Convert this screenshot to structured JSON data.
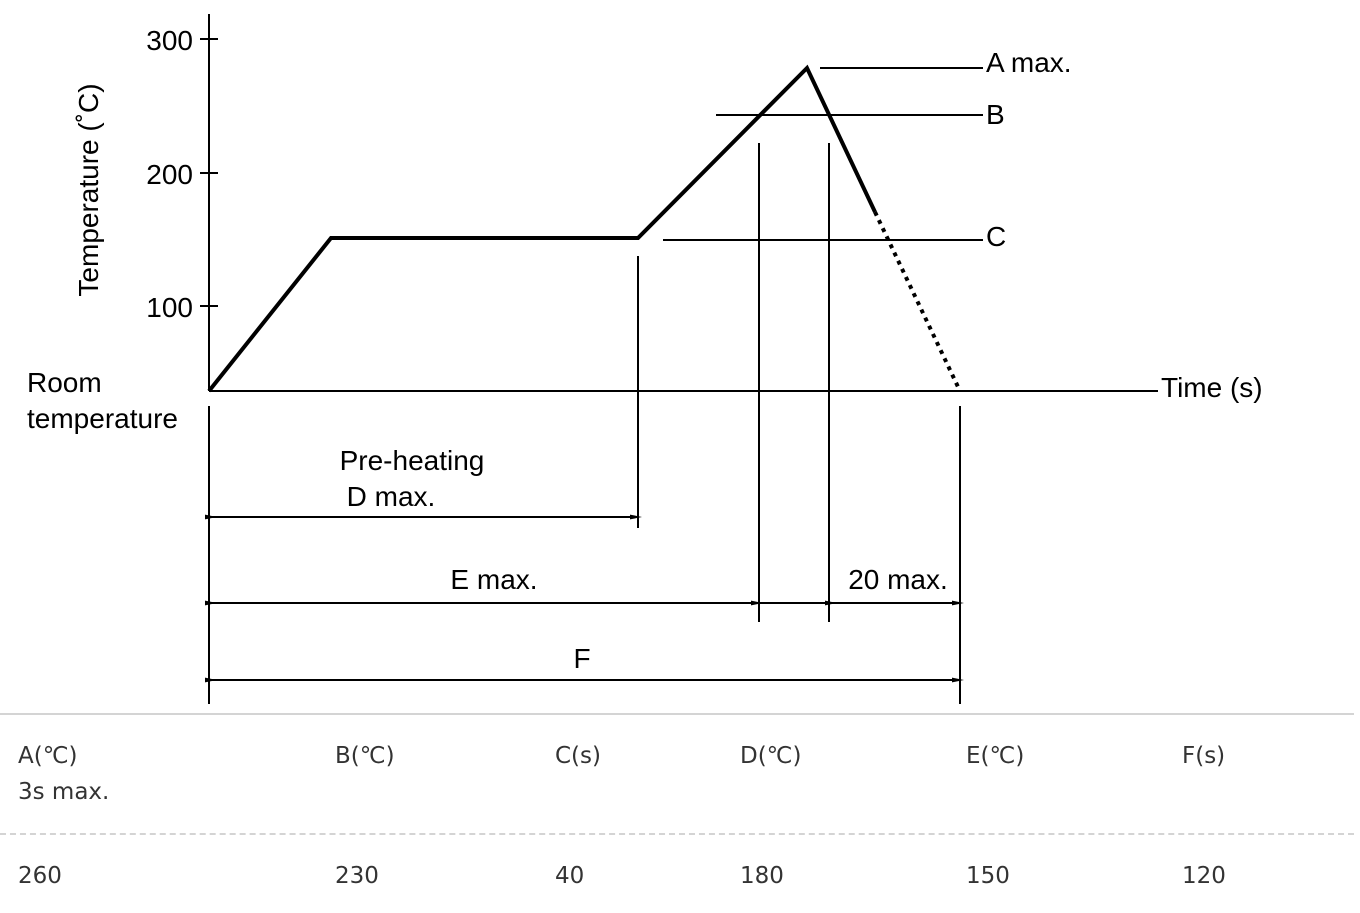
{
  "diagram": {
    "y_axis_label": "Temperature (˚C)",
    "y_ticks": [
      "300",
      "200",
      "100"
    ],
    "room_temperature_label": [
      "Room",
      "temperature"
    ],
    "x_axis_label": "Time (s)",
    "level_labels": {
      "a": "A max.",
      "b": "B",
      "c": "C"
    },
    "preheating_label": "Pre-heating",
    "d_label": "D max.",
    "e_label": "E max.",
    "twenty_label": "20 max.",
    "f_label": "F"
  },
  "table": {
    "headers": [
      {
        "name": "header-a",
        "lines": [
          "A(℃)",
          "3s max."
        ]
      },
      {
        "name": "header-b",
        "lines": [
          "B(℃)"
        ]
      },
      {
        "name": "header-c",
        "lines": [
          "C(s)"
        ]
      },
      {
        "name": "header-d",
        "lines": [
          "D(℃)"
        ]
      },
      {
        "name": "header-e",
        "lines": [
          "E(℃)"
        ]
      },
      {
        "name": "header-f",
        "lines": [
          "F(s)"
        ]
      }
    ],
    "values": [
      "260",
      "230",
      "40",
      "180",
      "150",
      "120"
    ]
  }
}
